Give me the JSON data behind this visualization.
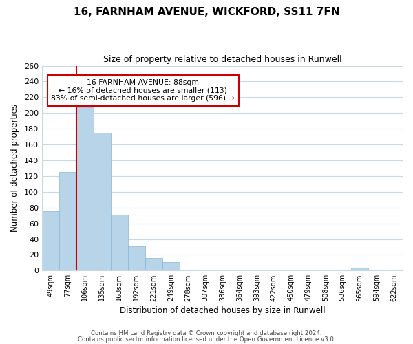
{
  "title": "16, FARNHAM AVENUE, WICKFORD, SS11 7FN",
  "subtitle": "Size of property relative to detached houses in Runwell",
  "xlabel": "Distribution of detached houses by size in Runwell",
  "ylabel": "Number of detached properties",
  "bar_labels": [
    "49sqm",
    "77sqm",
    "106sqm",
    "135sqm",
    "163sqm",
    "192sqm",
    "221sqm",
    "249sqm",
    "278sqm",
    "307sqm",
    "336sqm",
    "364sqm",
    "393sqm",
    "422sqm",
    "450sqm",
    "479sqm",
    "508sqm",
    "536sqm",
    "565sqm",
    "594sqm",
    "622sqm"
  ],
  "bar_values": [
    75,
    125,
    207,
    175,
    71,
    31,
    16,
    11,
    0,
    0,
    0,
    0,
    0,
    0,
    0,
    0,
    0,
    0,
    4,
    0,
    0
  ],
  "bar_color": "#b8d4e8",
  "bar_edge_color": "#8ab4d4",
  "property_line_label": "16 FARNHAM AVENUE: 88sqm",
  "annotation_line1": "← 16% of detached houses are smaller (113)",
  "annotation_line2": "83% of semi-detached houses are larger (596) →",
  "annotation_box_color": "#ffffff",
  "annotation_box_edge": "#cc0000",
  "property_line_color": "#cc0000",
  "property_line_xindex": 1,
  "ylim": [
    0,
    260
  ],
  "yticks": [
    0,
    20,
    40,
    60,
    80,
    100,
    120,
    140,
    160,
    180,
    200,
    220,
    240,
    260
  ],
  "footer_line1": "Contains HM Land Registry data © Crown copyright and database right 2024.",
  "footer_line2": "Contains public sector information licensed under the Open Government Licence v3.0.",
  "bg_color": "#ffffff",
  "grid_color": "#c8d8e8"
}
